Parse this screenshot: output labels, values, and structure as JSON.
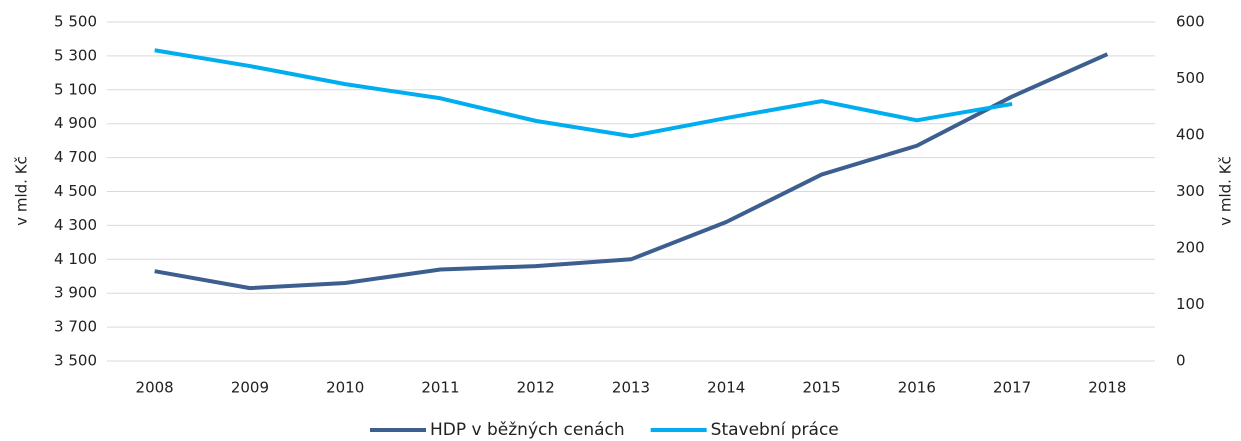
{
  "chart_data": {
    "type": "line",
    "categories": [
      "2008",
      "2009",
      "2010",
      "2011",
      "2012",
      "2013",
      "2014",
      "2015",
      "2016",
      "2017",
      "2018"
    ],
    "series": [
      {
        "name": "HDP v běžných cenách",
        "color": "#3d5f8f",
        "values": [
          4030,
          3930,
          3960,
          4040,
          4060,
          4100,
          4320,
          4600,
          4770,
          5060,
          5310
        ]
      },
      {
        "name": "Stavební práce",
        "color": "#00aeef",
        "axis": "y2",
        "values": [
          550,
          522,
          490,
          465,
          425,
          398,
          430,
          460,
          426,
          455,
          null
        ]
      }
    ],
    "ylabel": "v mld. Kč",
    "y2label": "v mld. Kč",
    "ylim": [
      3500,
      5500
    ],
    "yticks": [
      {
        "value": 3500,
        "label": "3 500"
      },
      {
        "value": 3700,
        "label": "3 700"
      },
      {
        "value": 3900,
        "label": "3 900"
      },
      {
        "value": 4100,
        "label": "4 100"
      },
      {
        "value": 4300,
        "label": "4 300"
      },
      {
        "value": 4500,
        "label": "4 500"
      },
      {
        "value": 4700,
        "label": "4 700"
      },
      {
        "value": 4900,
        "label": "4 900"
      },
      {
        "value": 5100,
        "label": "5 100"
      },
      {
        "value": 5300,
        "label": "5 300"
      },
      {
        "value": 5500,
        "label": "5 500"
      }
    ],
    "y2lim": [
      0,
      600
    ],
    "y2ticks": [
      0,
      100,
      200,
      300,
      400,
      500,
      600
    ],
    "grid": true,
    "legend": "bottom"
  }
}
